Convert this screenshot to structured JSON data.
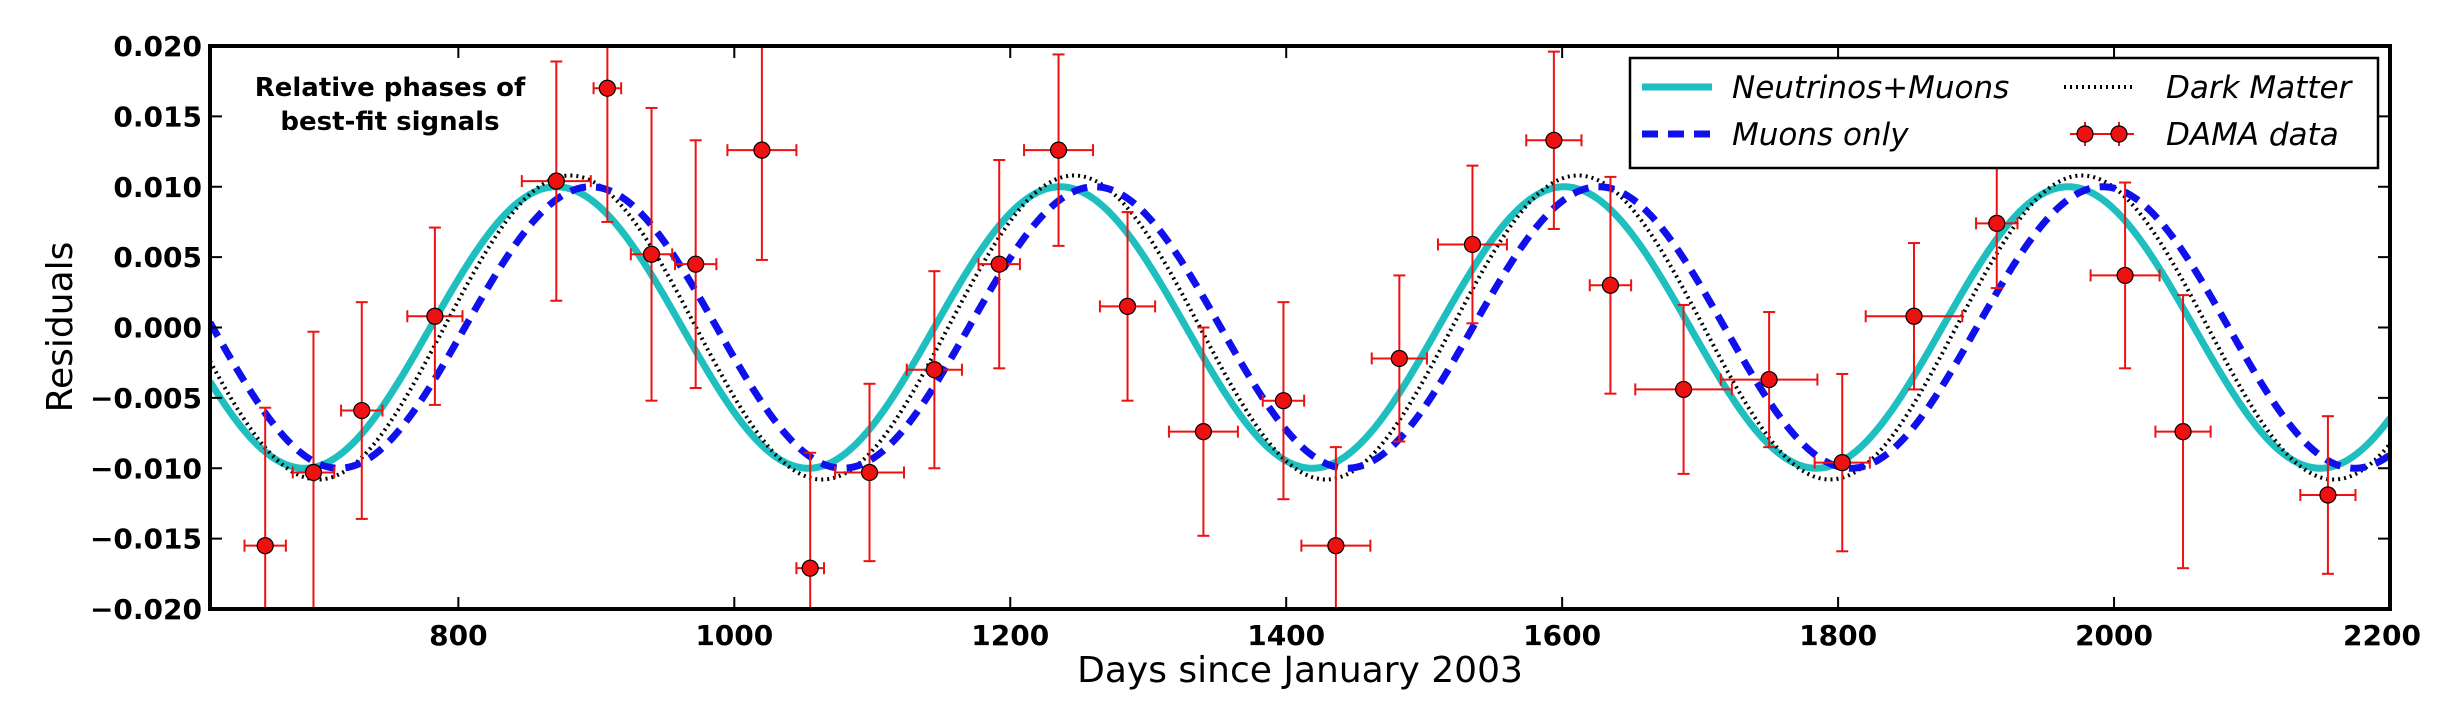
{
  "chart_data": {
    "type": "line",
    "xlabel": "Days since January 2003",
    "ylabel": "Residuals",
    "xlim": [
      620,
      2200
    ],
    "ylim": [
      -0.02,
      0.02
    ],
    "xticks": [
      800,
      1000,
      1200,
      1400,
      1600,
      1800,
      2000,
      2200
    ],
    "yticks": [
      -0.02,
      -0.015,
      -0.01,
      -0.005,
      0.0,
      0.005,
      0.01,
      0.015,
      0.02
    ],
    "ytick_labels": [
      "−0.020",
      "−0.015",
      "−0.010",
      "−0.005",
      "0.000",
      "0.005",
      "0.010",
      "0.015",
      "0.020"
    ],
    "xtick_labels": [
      "800",
      "1000",
      "1200",
      "1400",
      "1600",
      "1800",
      "2000",
      "2200"
    ],
    "grid": false,
    "legend_position": "top-right",
    "annotation": [
      "Relative phases of",
      "best-fit signals"
    ],
    "series": [
      {
        "name": "Neutrinos+Muons",
        "style": "solid",
        "color": "#1fbfbf",
        "amplitude": 0.01,
        "period": 365.25,
        "peak_day": 871,
        "x": [
          620,
          660,
          700,
          740,
          780,
          820,
          871,
          920,
          960,
          1000,
          1054,
          1100,
          1140,
          1180,
          1236,
          1280,
          1320,
          1360,
          1419,
          1460,
          1500,
          1540,
          1602,
          1640,
          1680,
          1720,
          1784,
          1820,
          1860,
          1900,
          1967,
          2010,
          2050,
          2090,
          2150,
          2200
        ],
        "y": [
          -0.0038,
          -0.0078,
          -0.01,
          -0.0079,
          -0.003,
          0.0041,
          0.01,
          0.0059,
          -0.001,
          -0.0071,
          -0.01,
          -0.007,
          -0.0025,
          0.0041,
          0.01,
          0.0065,
          0.0007,
          -0.0058,
          -0.01,
          -0.0077,
          -0.0031,
          0.0033,
          0.01,
          0.0074,
          0.0023,
          -0.0041,
          -0.01,
          -0.0082,
          -0.0039,
          0.0024,
          0.01,
          0.0081,
          0.0031,
          -0.0031,
          -0.01,
          -0.0069
        ]
      },
      {
        "name": "Muons only",
        "style": "dashed",
        "color": "#1010ee",
        "amplitude": 0.01,
        "period": 365.25,
        "peak_day": 896,
        "x": [
          620,
          660,
          712,
          760,
          800,
          840,
          896,
          940,
          980,
          1020,
          1079,
          1120,
          1160,
          1200,
          1261,
          1300,
          1340,
          1380,
          1444,
          1480,
          1520,
          1560,
          1627,
          1660,
          1700,
          1740,
          1809,
          1850,
          1890,
          1930,
          1992,
          2040,
          2080,
          2120,
          2175,
          2200
        ],
        "y": [
          0.0021,
          -0.0039,
          -0.01,
          -0.0067,
          -0.0012,
          0.0053,
          0.01,
          0.0069,
          0.0,
          -0.0066,
          -0.01,
          -0.0078,
          -0.0026,
          0.0036,
          0.01,
          0.0083,
          0.0033,
          -0.003,
          -0.01,
          -0.0088,
          -0.0046,
          0.0015,
          0.01,
          0.0089,
          0.0043,
          -0.0022,
          -0.01,
          -0.0087,
          -0.004,
          0.0024,
          0.01,
          0.0071,
          0.0016,
          -0.005,
          -0.01,
          -0.0093
        ]
      },
      {
        "name": "Dark Matter",
        "style": "dotted",
        "color": "#000000",
        "amplitude": 0.0108,
        "period": 365.25,
        "peak_day": 881,
        "x": [
          620,
          660,
          698,
          740,
          780,
          820,
          881,
          920,
          960,
          1000,
          1064,
          1100,
          1140,
          1180,
          1246,
          1280,
          1320,
          1360,
          1429,
          1460,
          1500,
          1540,
          1612,
          1650,
          1690,
          1730,
          1794,
          1830,
          1870,
          1910,
          1977,
          2020,
          2060,
          2100,
          2160,
          2200
        ],
        "y": [
          -0.0023,
          -0.0071,
          -0.0108,
          -0.0086,
          -0.0045,
          0.0025,
          0.0108,
          0.0078,
          0.0016,
          -0.0055,
          -0.0108,
          -0.0089,
          -0.0043,
          0.0025,
          0.0108,
          0.0086,
          0.0031,
          -0.0041,
          -0.0108,
          -0.0099,
          -0.0061,
          0.0005,
          0.0108,
          0.0089,
          0.0042,
          -0.002,
          -0.0108,
          -0.0093,
          -0.0052,
          0.0011,
          0.0108,
          0.0089,
          0.0045,
          -0.0019,
          -0.0108,
          -0.0085
        ]
      }
    ],
    "dama_data": {
      "name": "DAMA data",
      "color": "#ee1111",
      "points": [
        {
          "x": 660,
          "y": -0.0155,
          "xerr": 15,
          "yerr": 0.0098
        },
        {
          "x": 695,
          "y": -0.0103,
          "xerr": 15,
          "yerr": 0.01
        },
        {
          "x": 730,
          "y": -0.0059,
          "xerr": 15,
          "yerr": 0.0077
        },
        {
          "x": 783,
          "y": 0.0008,
          "xerr": 20,
          "yerr": 0.0063
        },
        {
          "x": 871,
          "y": 0.0104,
          "xerr": 25,
          "yerr": 0.0085
        },
        {
          "x": 908,
          "y": 0.017,
          "xerr": 10,
          "yerr": 0.0095
        },
        {
          "x": 940,
          "y": 0.0052,
          "xerr": 15,
          "yerr": 0.0104
        },
        {
          "x": 972,
          "y": 0.0045,
          "xerr": 15,
          "yerr": 0.0088
        },
        {
          "x": 1020,
          "y": 0.0126,
          "xerr": 25,
          "yerr": 0.0078
        },
        {
          "x": 1055,
          "y": -0.0171,
          "xerr": 10,
          "yerr": 0.0082
        },
        {
          "x": 1098,
          "y": -0.0103,
          "xerr": 25,
          "yerr": 0.0063
        },
        {
          "x": 1145,
          "y": -0.003,
          "xerr": 20,
          "yerr": 0.007
        },
        {
          "x": 1192,
          "y": 0.0045,
          "xerr": 15,
          "yerr": 0.0074
        },
        {
          "x": 1235,
          "y": 0.0126,
          "xerr": 25,
          "yerr": 0.0068
        },
        {
          "x": 1285,
          "y": 0.0015,
          "xerr": 20,
          "yerr": 0.0067
        },
        {
          "x": 1340,
          "y": -0.0074,
          "xerr": 25,
          "yerr": 0.0074
        },
        {
          "x": 1398,
          "y": -0.0052,
          "xerr": 15,
          "yerr": 0.007
        },
        {
          "x": 1436,
          "y": -0.0155,
          "xerr": 25,
          "yerr": 0.007
        },
        {
          "x": 1482,
          "y": -0.0022,
          "xerr": 20,
          "yerr": 0.0059
        },
        {
          "x": 1535,
          "y": 0.0059,
          "xerr": 25,
          "yerr": 0.0056
        },
        {
          "x": 1594,
          "y": 0.0133,
          "xerr": 20,
          "yerr": 0.0063
        },
        {
          "x": 1635,
          "y": 0.003,
          "xerr": 15,
          "yerr": 0.0077
        },
        {
          "x": 1688,
          "y": -0.0044,
          "xerr": 35,
          "yerr": 0.006
        },
        {
          "x": 1750,
          "y": -0.0037,
          "xerr": 35,
          "yerr": 0.0048
        },
        {
          "x": 1803,
          "y": -0.0096,
          "xerr": 20,
          "yerr": 0.0063
        },
        {
          "x": 1855,
          "y": 0.0008,
          "xerr": 35,
          "yerr": 0.0052
        },
        {
          "x": 1915,
          "y": 0.0074,
          "xerr": 15,
          "yerr": 0.0046
        },
        {
          "x": 2008,
          "y": 0.0037,
          "xerr": 25,
          "yerr": 0.0066
        },
        {
          "x": 2050,
          "y": -0.0074,
          "xerr": 20,
          "yerr": 0.0097
        },
        {
          "x": 2155,
          "y": -0.0119,
          "xerr": 20,
          "yerr": 0.0056
        }
      ]
    }
  }
}
